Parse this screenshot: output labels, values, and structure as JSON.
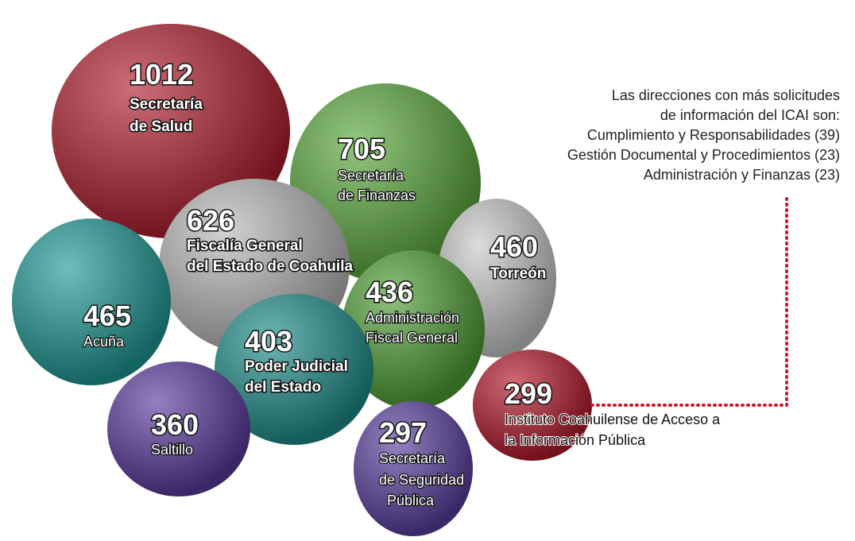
{
  "bubbles": [
    {
      "value": 1012,
      "label_lines": [
        "Secretaría",
        "de Salud"
      ]
    },
    {
      "value": 705,
      "label_lines": [
        "Secretaría",
        "de Finanzas"
      ]
    },
    {
      "value": 626,
      "label_lines": [
        "Fiscalía General",
        "del Estado de Coahuila"
      ]
    },
    {
      "value": 460,
      "label_lines": [
        "Torreón"
      ]
    },
    {
      "value": 436,
      "label_lines": [
        "Administración",
        "Fiscal General"
      ]
    },
    {
      "value": 465,
      "label_lines": [
        "Acuña"
      ]
    },
    {
      "value": 403,
      "label_lines": [
        "Poder Judicial",
        "del Estado"
      ]
    },
    {
      "value": 299,
      "label_lines": [
        "Instituto Coahuilense de Acceso a",
        "la Información Pública"
      ]
    },
    {
      "value": 360,
      "label_lines": [
        "Saltillo"
      ]
    },
    {
      "value": 297,
      "label_lines": [
        "Secretaría",
        "de Seguridad",
        "Pública"
      ]
    }
  ],
  "note": {
    "lines": [
      "Las direcciones con más solicitudes",
      "de información del ICAI son:",
      "Cumplimiento y Responsabilidades (39)",
      "Gestión Documental y Procedimientos (23)",
      "Administración y Finanzas (23)"
    ]
  }
}
